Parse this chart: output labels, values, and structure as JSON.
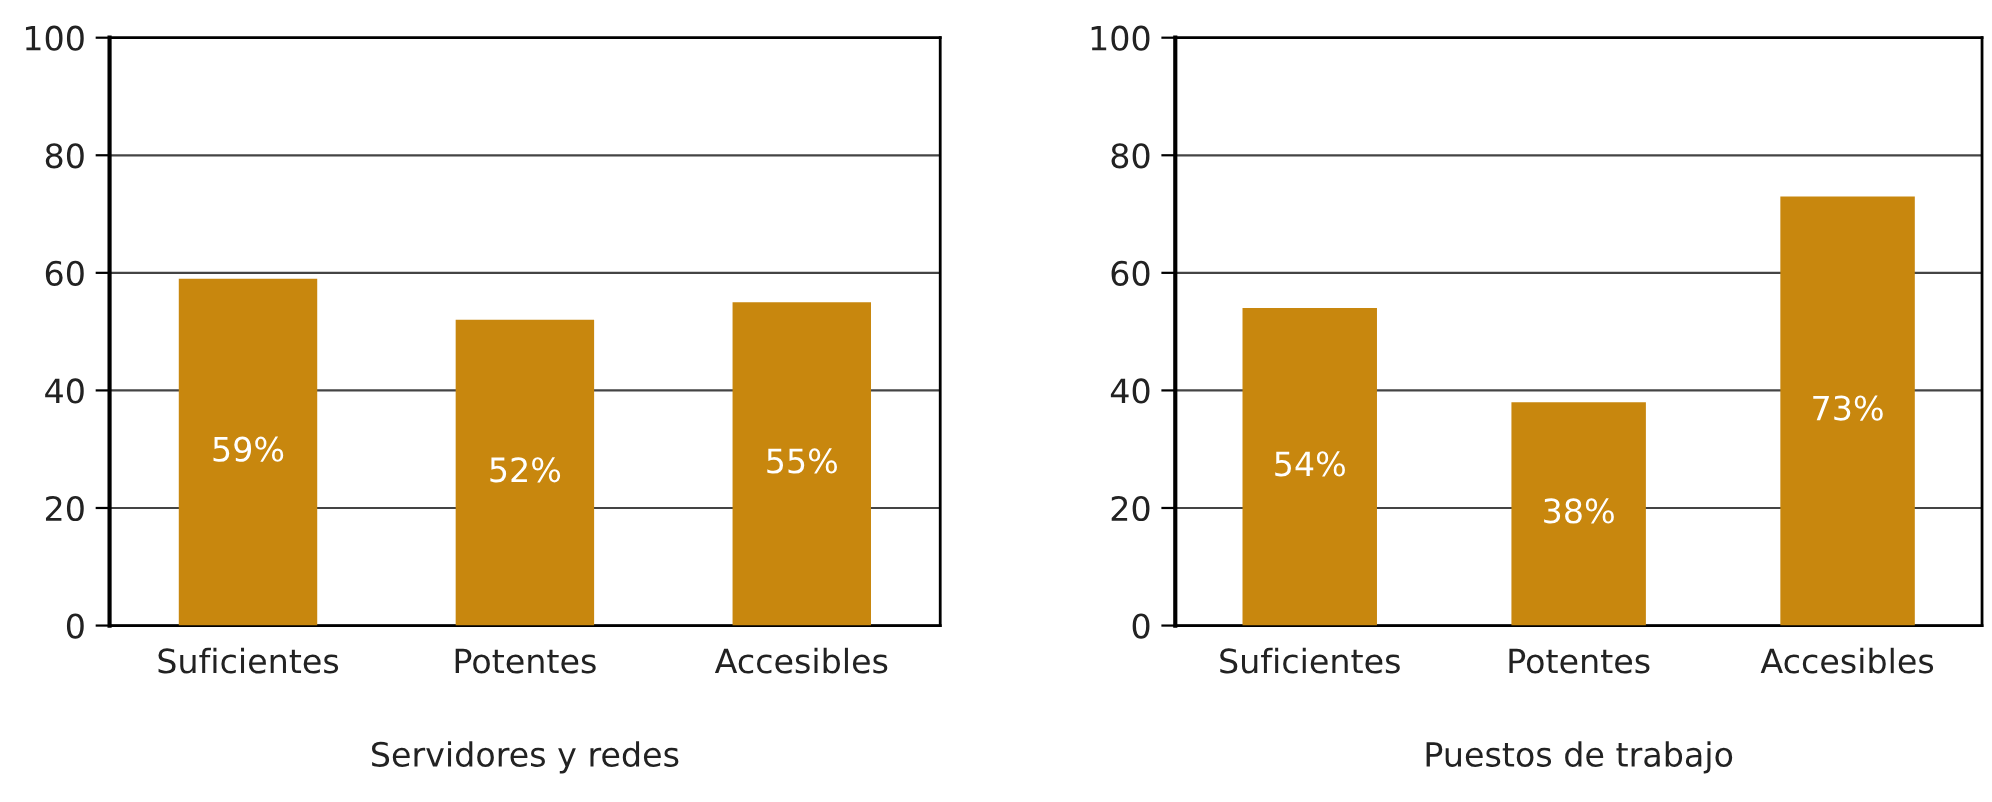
{
  "chart_data": [
    {
      "type": "bar",
      "xlabel": "Servidores y redes",
      "categories": [
        "Suficientes",
        "Potentes",
        "Accesibles"
      ],
      "values": [
        59,
        52,
        55
      ],
      "value_labels": [
        "59%",
        "52%",
        "55%"
      ],
      "color": "#c8870e",
      "ylim": [
        0,
        100
      ],
      "yticks": [
        0,
        20,
        40,
        60,
        80,
        100
      ],
      "grid": "y"
    },
    {
      "type": "bar",
      "xlabel": "Puestos de trabajo",
      "categories": [
        "Suficientes",
        "Potentes",
        "Accesibles"
      ],
      "values": [
        54,
        38,
        73
      ],
      "value_labels": [
        "54%",
        "38%",
        "73%"
      ],
      "color": "#c8870e",
      "ylim": [
        0,
        100
      ],
      "yticks": [
        0,
        20,
        40,
        60,
        80,
        100
      ],
      "grid": "y"
    }
  ]
}
